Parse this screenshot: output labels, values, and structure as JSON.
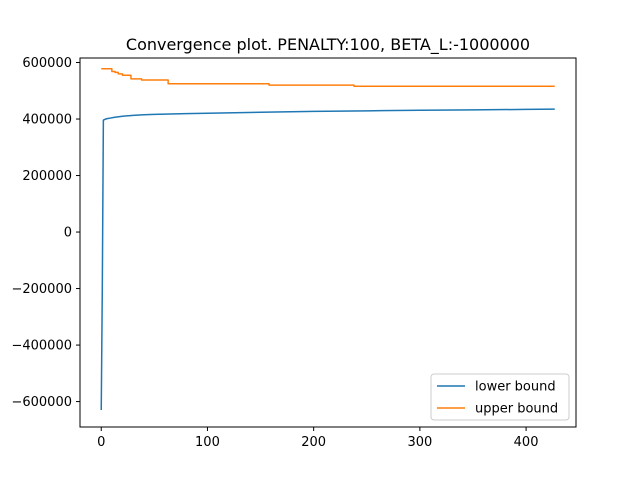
{
  "chart_data": {
    "type": "line",
    "title": "Convergence plot. PENALTY:100, BETA_L:-1000000",
    "xlabel": "",
    "ylabel": "",
    "xlim": [
      -20,
      447
    ],
    "ylim": [
      -690000,
      616000
    ],
    "xticks": [
      0,
      100,
      200,
      300,
      400
    ],
    "xtick_labels": [
      "0",
      "100",
      "200",
      "300",
      "400"
    ],
    "yticks": [
      -600000,
      -400000,
      -200000,
      0,
      200000,
      400000,
      600000
    ],
    "ytick_labels": [
      "−600000",
      "−400000",
      "−200000",
      "0",
      "200000",
      "400000",
      "600000"
    ],
    "grid": false,
    "legend_position": "lower-right",
    "series": [
      {
        "name": "lower bound",
        "color": "#1f77b4",
        "x": [
          0,
          1,
          2,
          3,
          5,
          8,
          12,
          20,
          30,
          40,
          50,
          60,
          80,
          100,
          150,
          200,
          250,
          300,
          350,
          400,
          427
        ],
        "y": [
          -630000,
          -200000,
          396000,
          398000,
          401000,
          403000,
          406000,
          410000,
          413000,
          415000,
          416500,
          417500,
          419000,
          420500,
          424000,
          427000,
          429000,
          431000,
          432500,
          434000,
          435000
        ]
      },
      {
        "name": "upper bound",
        "color": "#ff7f0e",
        "x": [
          0,
          10,
          10,
          13,
          13,
          16,
          16,
          20,
          20,
          28,
          28,
          38,
          38,
          63,
          63,
          158,
          158,
          238,
          238,
          427
        ],
        "y": [
          578000,
          578000,
          568000,
          568000,
          565000,
          565000,
          560000,
          560000,
          555000,
          555000,
          542000,
          542000,
          538000,
          538000,
          525000,
          525000,
          520000,
          520000,
          516000,
          516000
        ]
      }
    ]
  }
}
